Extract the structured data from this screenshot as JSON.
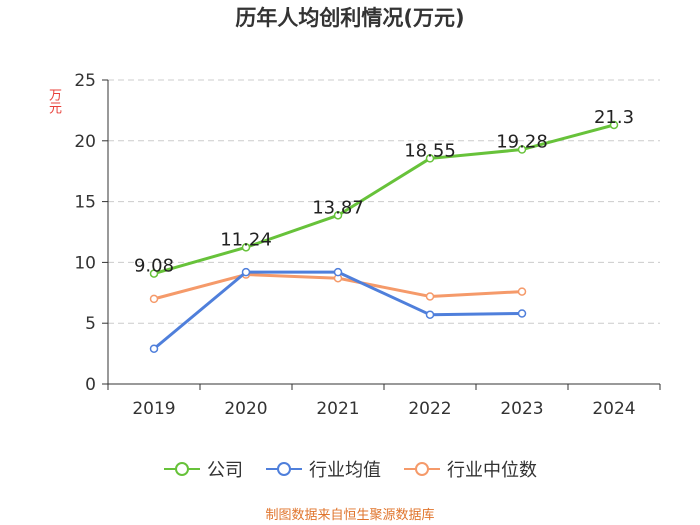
{
  "title": "历年人均创利情况(万元)",
  "unit_label": "万元",
  "source": "制图数据来自恒生聚源数据库",
  "chart_data": {
    "type": "line",
    "title": "历年人均创利情况(万元)",
    "ylabel": "万元",
    "categories": [
      "2019",
      "2020",
      "2021",
      "2022",
      "2023",
      "2024"
    ],
    "ylim": [
      0,
      25
    ],
    "yticks": [
      0,
      5,
      10,
      15,
      20,
      25
    ],
    "grid": true,
    "legend_position": "bottom",
    "series": [
      {
        "name": "公司",
        "color": "#67c23a",
        "values": [
          9.08,
          11.24,
          13.87,
          18.55,
          19.28,
          21.3
        ],
        "labels": [
          "9.08",
          "11.24",
          "13.87",
          "18.55",
          "19.28",
          "21.3"
        ]
      },
      {
        "name": "行业均值",
        "color": "#4f7fdb",
        "values": [
          2.9,
          9.2,
          9.2,
          5.7,
          5.8,
          null
        ]
      },
      {
        "name": "行业中位数",
        "color": "#f59a6a",
        "values": [
          7.0,
          9.0,
          8.7,
          7.2,
          7.6,
          null
        ]
      }
    ]
  }
}
